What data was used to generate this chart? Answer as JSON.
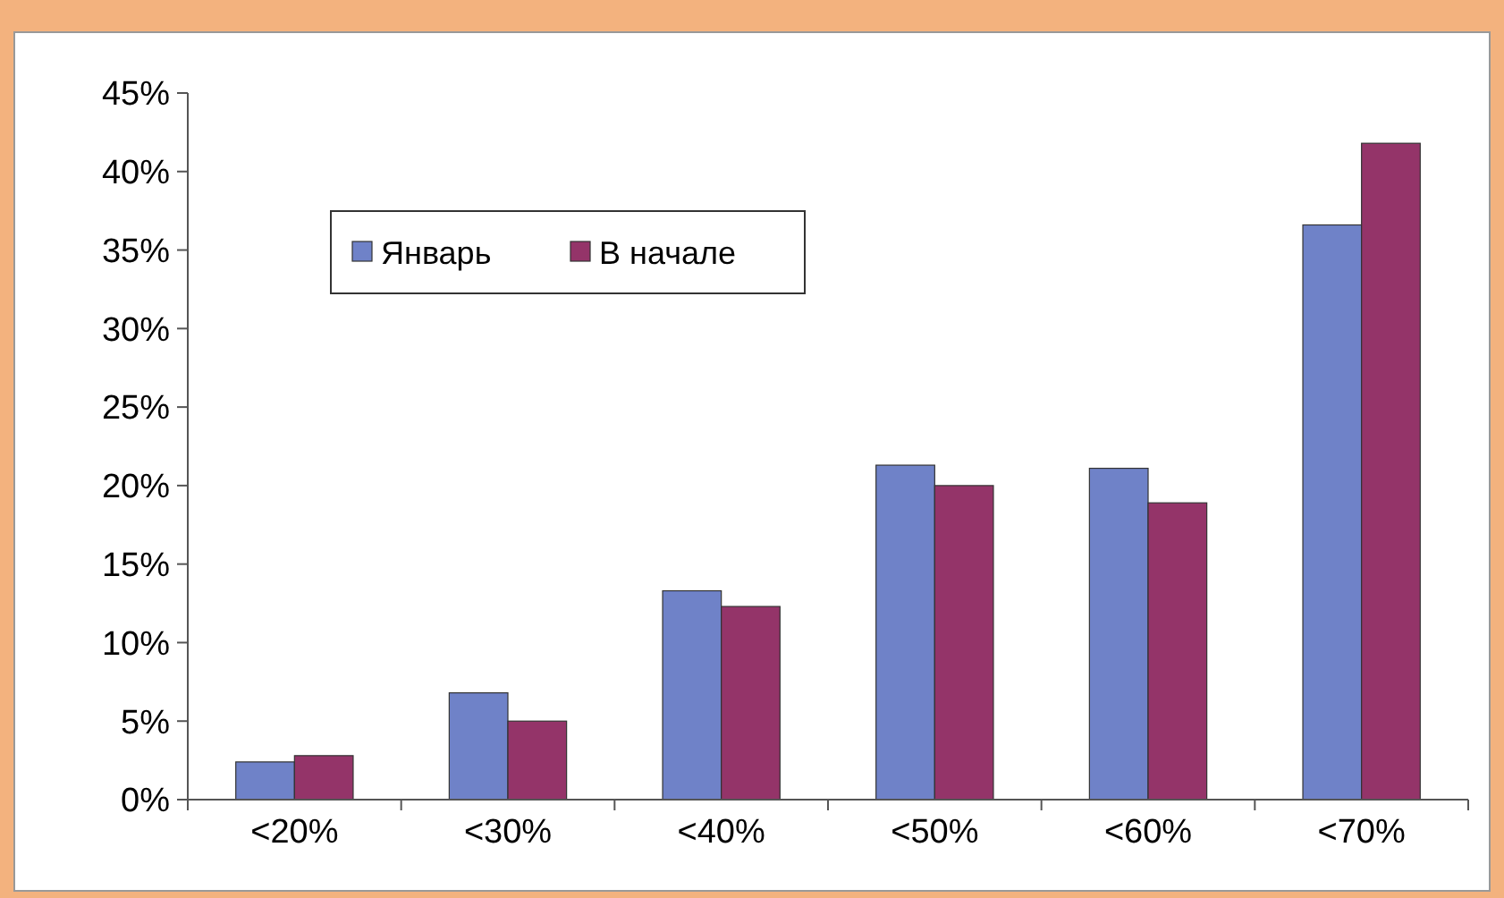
{
  "chart_data": {
    "type": "bar",
    "categories": [
      "<20%",
      "<30%",
      "<40%",
      "<50%",
      "<60%",
      "<70%"
    ],
    "series": [
      {
        "name": "Январь",
        "color": "#6f82c8",
        "values": [
          2.4,
          6.8,
          13.3,
          21.3,
          21.1,
          36.6
        ]
      },
      {
        "name": "В начале",
        "color": "#943469",
        "values": [
          2.8,
          5.0,
          12.3,
          20.0,
          18.9,
          41.8
        ]
      }
    ],
    "ylim": [
      0,
      45
    ],
    "yticks": [
      {
        "value": 0,
        "label": "0%"
      },
      {
        "value": 5,
        "label": "5%"
      },
      {
        "value": 10,
        "label": "10%"
      },
      {
        "value": 15,
        "label": "15%"
      },
      {
        "value": 20,
        "label": "20%"
      },
      {
        "value": 25,
        "label": "25%"
      },
      {
        "value": 30,
        "label": "30%"
      },
      {
        "value": 35,
        "label": "35%"
      },
      {
        "value": 40,
        "label": "40%"
      },
      {
        "value": 45,
        "label": "45%"
      }
    ],
    "grid": false,
    "legend": "top left"
  }
}
